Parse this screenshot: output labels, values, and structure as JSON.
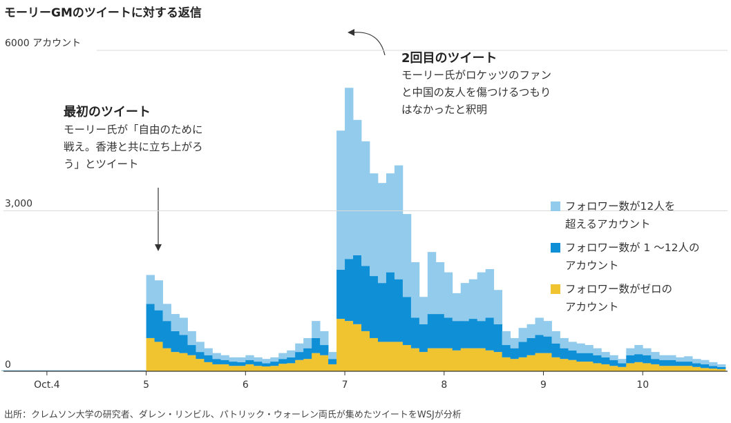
{
  "chart_data": {
    "type": "stacked_histogram",
    "title": "モーリーGMのツイートに対する返信",
    "source": "出所：クレムソン大学の研究者、ダレン・リンビル、パトリック・ウォーレン両氏が集めたツイートをWSJが分析",
    "annotations": [
      {
        "heading": "最初のツイート",
        "text": "モーリー氏が「自由のために戦え。香港と共に立ち上がろう」とツイート"
      },
      {
        "heading": "2回目のツイート",
        "text": "モーリー氏がロケッツのファンと中国の友人を傷つけるつもりはなかったと釈明"
      }
    ],
    "bins": [
      -11,
      24,
      26,
      28,
      30,
      32,
      34,
      36,
      38,
      40,
      42,
      44,
      46,
      48,
      50,
      52,
      54,
      56,
      58,
      60,
      62,
      64,
      66,
      68,
      70,
      72,
      74,
      76,
      78,
      80,
      82,
      84,
      86,
      88,
      90,
      92,
      94,
      96,
      98,
      100,
      102,
      104,
      106,
      108,
      110,
      112,
      114,
      116,
      118,
      120,
      122,
      124,
      126,
      128,
      130,
      132,
      134,
      136,
      138,
      140,
      142,
      144,
      146,
      148,
      150,
      152,
      154,
      156,
      158,
      160,
      162,
      164
    ],
    "series": [
      {
        "name": "フォロワー数がゼロのアカウント",
        "color": "#f0c431",
        "values": [
          5,
          620,
          550,
          430,
          360,
          340,
          300,
          230,
          170,
          130,
          130,
          100,
          100,
          130,
          100,
          90,
          100,
          140,
          150,
          210,
          230,
          340,
          300,
          130,
          980,
          940,
          880,
          750,
          620,
          550,
          550,
          550,
          490,
          430,
          360,
          430,
          430,
          430,
          390,
          430,
          430,
          430,
          390,
          360,
          260,
          230,
          260,
          300,
          340,
          340,
          260,
          230,
          210,
          180,
          180,
          150,
          130,
          100,
          80,
          150,
          170,
          150,
          130,
          100,
          100,
          100,
          100,
          80,
          60,
          50,
          40
        ]
      },
      {
        "name": "フォロワー数が 1 ～12人のアカウント",
        "color": "#0f8fd6",
        "values": [
          5,
          640,
          590,
          510,
          390,
          340,
          190,
          130,
          130,
          100,
          80,
          80,
          70,
          80,
          80,
          60,
          80,
          90,
          110,
          150,
          200,
          280,
          190,
          100,
          920,
          1160,
          1290,
          1220,
          1160,
          1100,
          1300,
          1170,
          900,
          570,
          520,
          640,
          640,
          570,
          550,
          510,
          550,
          510,
          610,
          520,
          230,
          200,
          290,
          320,
          340,
          310,
          260,
          200,
          180,
          160,
          160,
          150,
          130,
          110,
          70,
          150,
          150,
          150,
          100,
          110,
          110,
          80,
          80,
          70,
          70,
          50,
          40
        ]
      },
      {
        "name": "フォロワー数が12人を超えるアカウント",
        "color": "#92cbec",
        "values": [
          10,
          540,
          560,
          320,
          320,
          320,
          260,
          190,
          130,
          110,
          90,
          80,
          90,
          90,
          80,
          80,
          80,
          110,
          130,
          160,
          190,
          320,
          260,
          130,
          2600,
          3200,
          2530,
          2330,
          1920,
          1870,
          1850,
          2130,
          1550,
          1040,
          510,
          1160,
          970,
          850,
          520,
          710,
          740,
          910,
          910,
          640,
          260,
          190,
          260,
          260,
          320,
          290,
          230,
          190,
          160,
          180,
          150,
          130,
          100,
          90,
          80,
          130,
          170,
          130,
          130,
          90,
          90,
          80,
          100,
          80,
          80,
          70,
          50
        ]
      }
    ],
    "xlim": [
      -10.5,
      164.5
    ],
    "xticks": [
      {
        "value": 0,
        "label": "Oct.4"
      },
      {
        "value": 24,
        "label": "5"
      },
      {
        "value": 48,
        "label": "6"
      },
      {
        "value": 72,
        "label": "7"
      },
      {
        "value": 96,
        "label": "8"
      },
      {
        "value": 120,
        "label": "9"
      },
      {
        "value": 144,
        "label": "10"
      }
    ],
    "ylim": [
      0,
      6000
    ],
    "yticks": [
      0,
      {
        "value": 3000,
        "label": "3,000"
      },
      {
        "value": 6000,
        "label": "6000 アカウント"
      }
    ],
    "grid": true
  }
}
